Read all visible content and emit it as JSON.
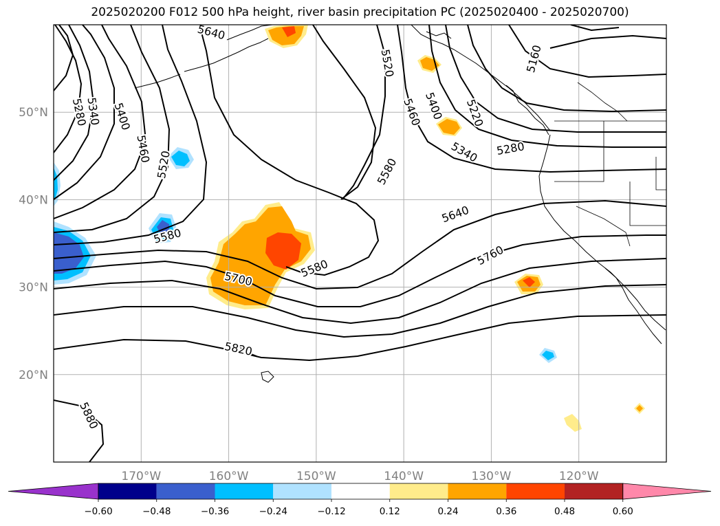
{
  "title": "2025020200 F012 500 hPa height, river basin precipitation PC (2025020400 - 2025020700)",
  "map": {
    "lon_range": [
      -180,
      -110
    ],
    "lat_range": [
      10,
      60
    ],
    "lon_ticks": [
      {
        "lon": -170,
        "label": "170°W"
      },
      {
        "lon": -160,
        "label": "160°W"
      },
      {
        "lon": -150,
        "label": "150°W"
      },
      {
        "lon": -140,
        "label": "140°W"
      },
      {
        "lon": -130,
        "label": "130°W"
      },
      {
        "lon": -120,
        "label": "120°W"
      }
    ],
    "lat_ticks": [
      {
        "lat": 20,
        "label": "20°N"
      },
      {
        "lat": 30,
        "label": "30°N"
      },
      {
        "lat": 40,
        "label": "40°N"
      },
      {
        "lat": 50,
        "label": "50°N"
      }
    ],
    "grid": true,
    "contour_labels": [
      {
        "text": "5640",
        "lon": -162.0,
        "lat": 59.1,
        "angle": 15
      },
      {
        "text": "5280",
        "lon": -177.1,
        "lat": 50.0,
        "angle": 78
      },
      {
        "text": "5340",
        "lon": -175.5,
        "lat": 50.1,
        "angle": 82
      },
      {
        "text": "5400",
        "lon": -172.2,
        "lat": 49.5,
        "angle": 72
      },
      {
        "text": "5460",
        "lon": -169.8,
        "lat": 45.8,
        "angle": 80
      },
      {
        "text": "5520",
        "lon": -167.4,
        "lat": 44.0,
        "angle": -80
      },
      {
        "text": "5580",
        "lon": -167.0,
        "lat": 35.8,
        "angle": -15
      },
      {
        "text": "5700",
        "lon": -158.9,
        "lat": 30.9,
        "angle": 13
      },
      {
        "text": "5820",
        "lon": -158.9,
        "lat": 22.9,
        "angle": 12
      },
      {
        "text": "5880",
        "lon": -176.0,
        "lat": 15.3,
        "angle": 65
      },
      {
        "text": "5580",
        "lon": -141.9,
        "lat": 43.2,
        "angle": -62
      },
      {
        "text": "5580",
        "lon": -150.2,
        "lat": 32.1,
        "angle": -22
      },
      {
        "text": "5640",
        "lon": -134.1,
        "lat": 38.3,
        "angle": -20
      },
      {
        "text": "5760",
        "lon": -130.1,
        "lat": 33.6,
        "angle": -28
      },
      {
        "text": "5520",
        "lon": -141.9,
        "lat": 55.6,
        "angle": 80
      },
      {
        "text": "5460",
        "lon": -139.1,
        "lat": 50.0,
        "angle": 70
      },
      {
        "text": "5400",
        "lon": -136.6,
        "lat": 50.7,
        "angle": 70
      },
      {
        "text": "5220",
        "lon": -131.9,
        "lat": 49.9,
        "angle": 70
      },
      {
        "text": "5340",
        "lon": -133.1,
        "lat": 45.4,
        "angle": 30
      },
      {
        "text": "5280",
        "lon": -127.8,
        "lat": 45.8,
        "angle": -10
      },
      {
        "text": "5160",
        "lon": -125.1,
        "lat": 56.1,
        "angle": -75
      }
    ]
  },
  "colorbar": {
    "colors": [
      "#9932CC",
      "#00008B",
      "#3A5FCD",
      "#00BFFF",
      "#B0E2FF",
      "#FFFFFF",
      "#FFEC8B",
      "#FFA500",
      "#FF4500",
      "#B22222",
      "#FF88AA"
    ],
    "labels": [
      "−0.60",
      "−0.48",
      "−0.36",
      "−0.24",
      "−0.12",
      "0.12",
      "0.24",
      "0.36",
      "0.48",
      "0.60"
    ]
  }
}
